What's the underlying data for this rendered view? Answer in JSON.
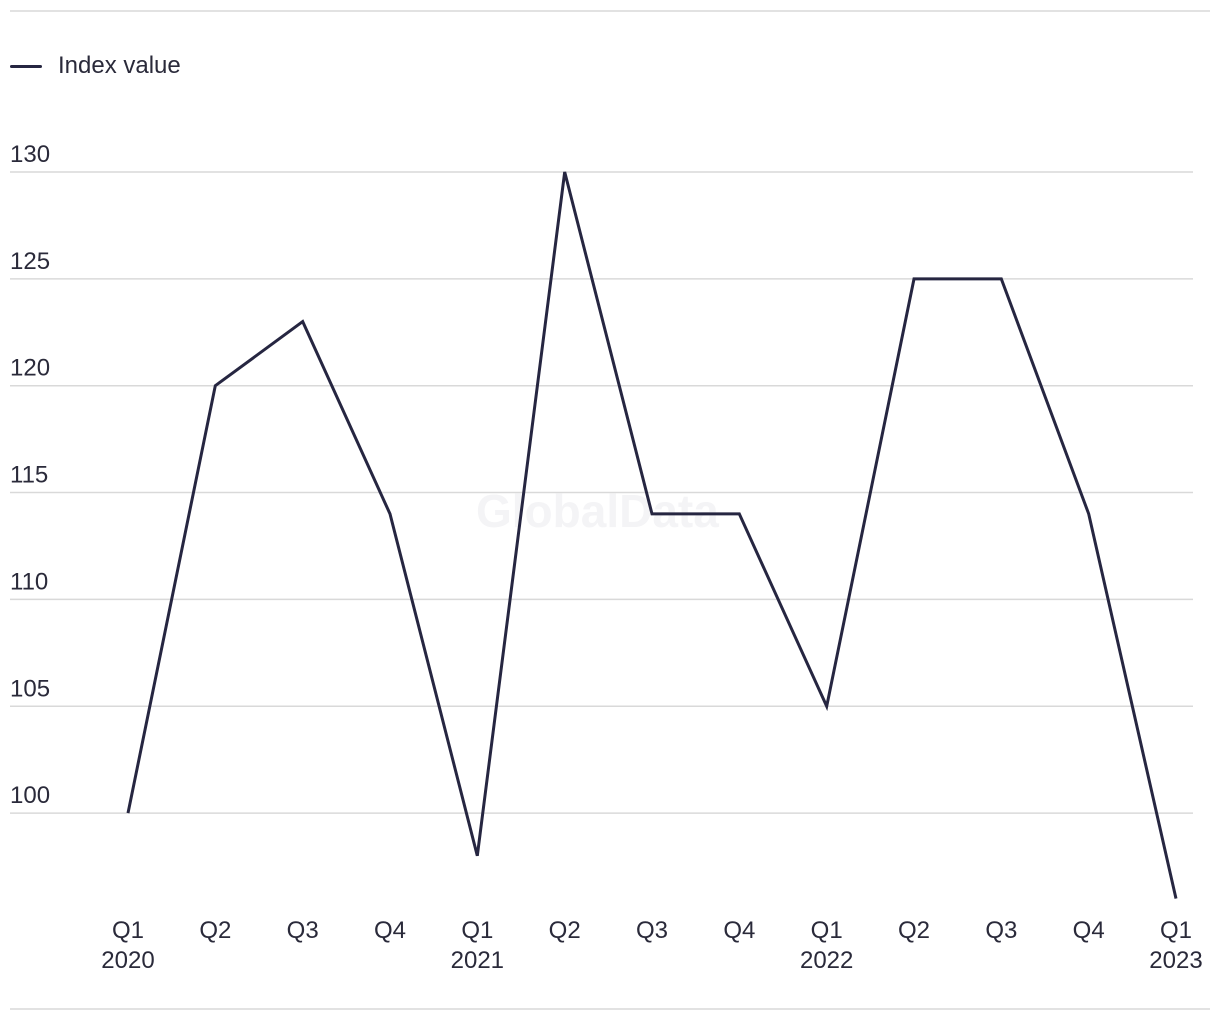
{
  "watermark": "GlobalData",
  "colors": {
    "line": "#262641",
    "grid": "#d9d9d9",
    "text": "#2a2a3a"
  },
  "chart_data": {
    "type": "line",
    "categories": [
      "Q1",
      "Q2",
      "Q3",
      "Q4",
      "Q1",
      "Q2",
      "Q3",
      "Q4",
      "Q1",
      "Q2",
      "Q3",
      "Q4",
      "Q1"
    ],
    "years": [
      "2020",
      "",
      "",
      "",
      "2021",
      "",
      "",
      "",
      "2022",
      "",
      "",
      "",
      "2023"
    ],
    "series": [
      {
        "name": "Index value",
        "values": [
          100,
          120,
          123,
          114,
          98,
          130,
          114,
          114,
          105,
          125,
          125,
          114,
          96
        ]
      }
    ],
    "yticks": [
      100,
      105,
      110,
      115,
      120,
      125,
      130
    ],
    "ylim": [
      95,
      130
    ],
    "grid": true,
    "legend": "top-left",
    "title": "",
    "xlabel": "",
    "ylabel": ""
  }
}
